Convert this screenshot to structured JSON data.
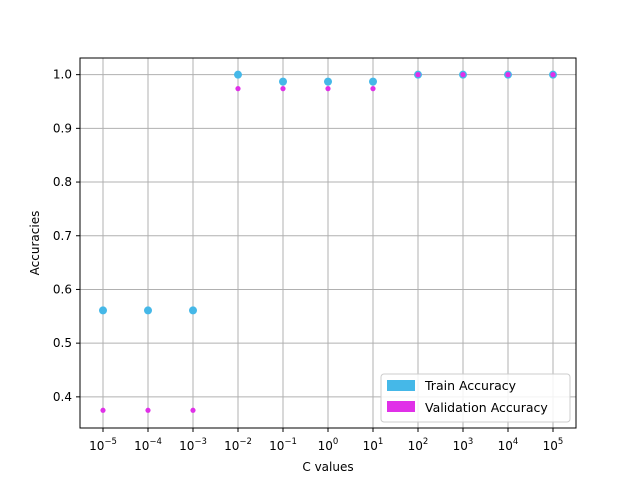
{
  "chart_data": {
    "type": "scatter",
    "title": "",
    "xlabel": "C values",
    "ylabel": "Accuracies",
    "x_scale": "log",
    "x": [
      1e-05,
      0.0001,
      0.001,
      0.01,
      0.1,
      1,
      10,
      100,
      1000,
      10000,
      100000
    ],
    "x_tick_labels": [
      {
        "base": "10",
        "exp": "−5"
      },
      {
        "base": "10",
        "exp": "−4"
      },
      {
        "base": "10",
        "exp": "−3"
      },
      {
        "base": "10",
        "exp": "−2"
      },
      {
        "base": "10",
        "exp": "−1"
      },
      {
        "base": "10",
        "exp": "0"
      },
      {
        "base": "10",
        "exp": "1"
      },
      {
        "base": "10",
        "exp": "2"
      },
      {
        "base": "10",
        "exp": "3"
      },
      {
        "base": "10",
        "exp": "4"
      },
      {
        "base": "10",
        "exp": "5"
      }
    ],
    "y_ticks": [
      "0.4",
      "0.5",
      "0.6",
      "0.7",
      "0.8",
      "0.9",
      "1.0"
    ],
    "ylim": [
      0.342,
      1.031
    ],
    "grid": true,
    "legend_position": "bottom-right",
    "series": [
      {
        "name": "Train Accuracy",
        "color": "#45b8e8",
        "values": [
          0.561,
          0.561,
          0.561,
          1.0,
          0.987,
          0.987,
          0.987,
          1.0,
          1.0,
          1.0,
          1.0
        ]
      },
      {
        "name": "Validation Accuracy",
        "color": "#e030e8",
        "values": [
          0.375,
          0.375,
          0.375,
          0.974,
          0.974,
          0.974,
          0.974,
          1.0,
          1.0,
          1.0,
          1.0
        ]
      }
    ]
  }
}
